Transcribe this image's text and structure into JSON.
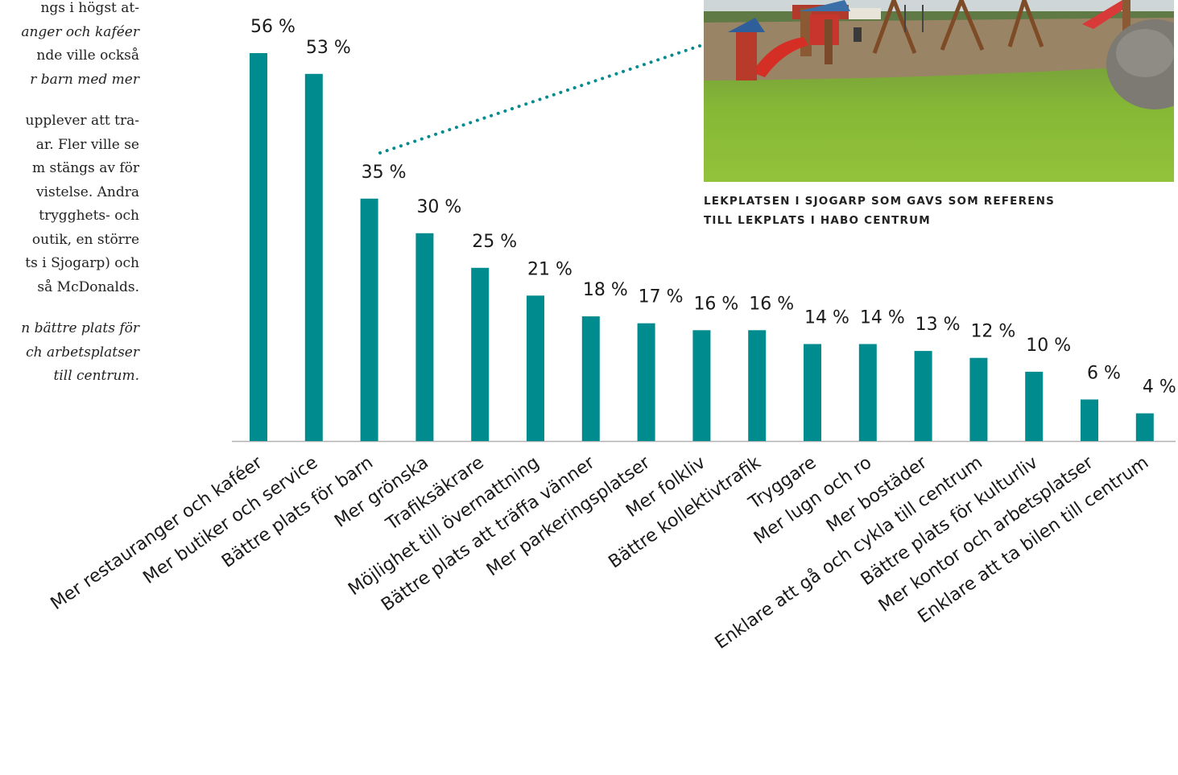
{
  "text_column": {
    "lines": [
      "ngs i högst at-",
      "anger och kaféer",
      "nde ville också",
      "r barn med mer",
      "",
      "upplever att tra-",
      "ar. Fler ville se",
      "m stängs av för",
      "vistelse. Andra",
      "trygghets- och",
      "outik, en större",
      "ts i Sjogarp) och",
      "så McDonalds.",
      "",
      "n bättre plats för",
      "ch arbetsplatser",
      "till centrum."
    ]
  },
  "photo": {
    "caption_line1": "LEKPLATSEN I SJOGARP SOM GAVS SOM REFERENS",
    "caption_line2": "TILL LEKPLATS I HABO CENTRUM"
  },
  "colors": {
    "bar": "#008b8f",
    "connector": "#008b8f",
    "axis": "#b0b0b0"
  },
  "chart_data": {
    "type": "bar",
    "categories": [
      "Mer restauranger och kaféer",
      "Mer butiker och service",
      "Bättre plats för barn",
      "Mer grönska",
      "Trafiksäkrare",
      "Möjlighet till övernattning",
      "Bättre plats att träffa vänner",
      "Mer parkeringsplatser",
      "Mer folkliv",
      "Bättre kollektivtrafik",
      "Tryggare",
      "Mer lugn och ro",
      "Mer bostäder",
      "Enklare att gå och cykla till centrum",
      "Bättre plats för kulturliv",
      "Mer kontor och arbetsplatser",
      "Enklare att ta bilen till centrum"
    ],
    "values": [
      56,
      53,
      35,
      30,
      25,
      21,
      18,
      17,
      16,
      16,
      14,
      14,
      13,
      12,
      10,
      6,
      4
    ],
    "value_labels": [
      "56 %",
      "53 %",
      "35 %",
      "30 %",
      "25 %",
      "21 %",
      "18 %",
      "17 %",
      "16 %",
      "16 %",
      "14 %",
      "14 %",
      "13 %",
      "12 %",
      "10 %",
      "6 %",
      "4 %"
    ],
    "unit": "%",
    "ylim": [
      0,
      56
    ],
    "grid": false,
    "legend": "none"
  }
}
